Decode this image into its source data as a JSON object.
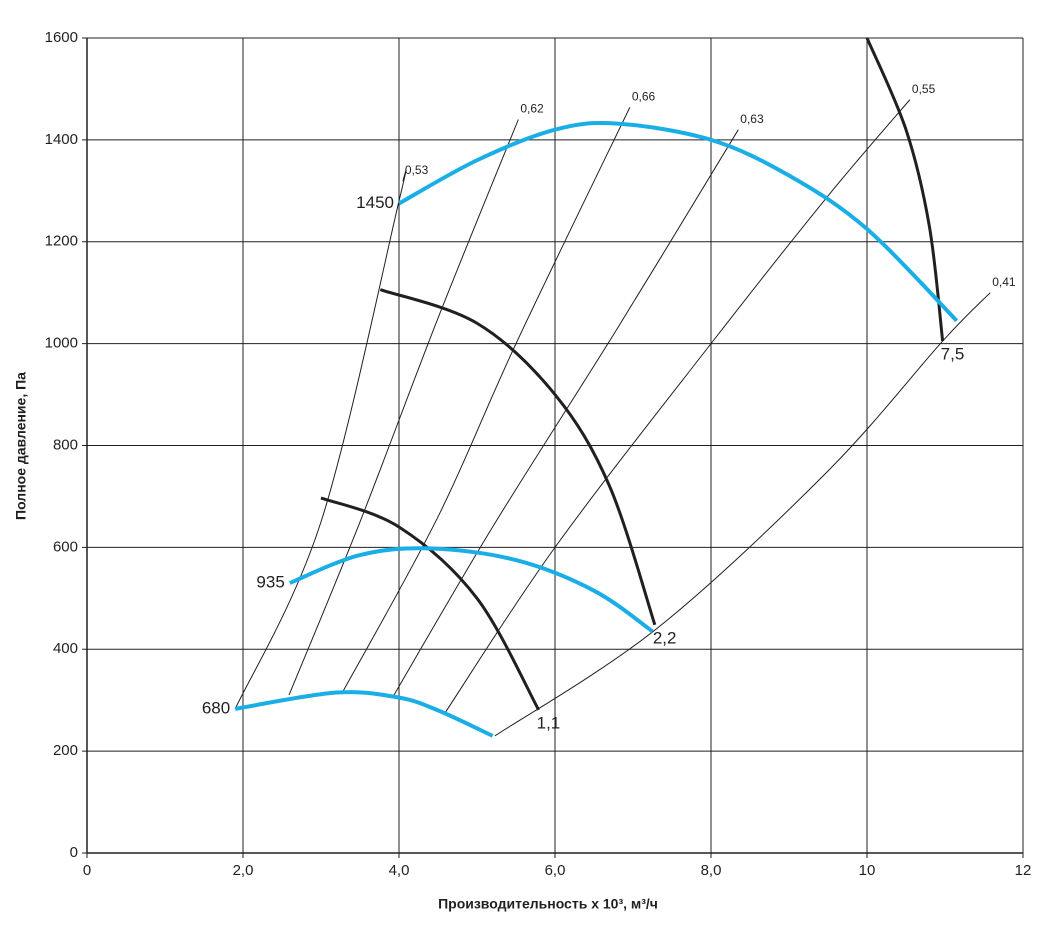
{
  "chart_data": {
    "type": "line",
    "x_label": "Производительность x 10³, м³/ч",
    "y_label": "Полное давление, Па",
    "xlim": [
      0,
      12
    ],
    "ylim": [
      0,
      1600
    ],
    "xticks": [
      0,
      {
        "value": 2,
        "label": "2,0"
      },
      {
        "value": 4,
        "label": "4,0"
      },
      {
        "value": 6,
        "label": "6,0"
      },
      {
        "value": 8,
        "label": "8,0"
      },
      10,
      12
    ],
    "yticks": [
      0,
      200,
      400,
      600,
      800,
      1000,
      1200,
      1400,
      1600
    ],
    "grid": true,
    "speed_series": [
      {
        "name": "1450",
        "color": "#1aaee6",
        "x": [
          4.0,
          5.0,
          6.0,
          6.8,
          8.0,
          9.0,
          10.0,
          11.15
        ],
        "values": [
          1275,
          1360,
          1420,
          1432,
          1400,
          1330,
          1225,
          1045
        ]
      },
      {
        "name": "935",
        "color": "#1aaee6",
        "x": [
          2.6,
          3.5,
          4.4,
          5.5,
          6.5,
          7.25
        ],
        "values": [
          530,
          585,
          598,
          575,
          515,
          435
        ]
      },
      {
        "name": "680",
        "color": "#1aaee6",
        "x": [
          1.9,
          3.2,
          4.0,
          4.5,
          5.2
        ],
        "values": [
          283,
          315,
          305,
          280,
          230
        ]
      }
    ],
    "power_series": [
      {
        "name": "1,1",
        "color": "#231f20",
        "x": [
          3.0,
          4.0,
          5.0,
          5.79
        ],
        "values": [
          697,
          640,
          500,
          281
        ]
      },
      {
        "name": "2,2",
        "color": "#231f20",
        "x": [
          3.76,
          5.0,
          6.0,
          6.7,
          7.28
        ],
        "values": [
          1106,
          1040,
          900,
          720,
          448
        ]
      },
      {
        "name": "7,5",
        "color": "#231f20",
        "x": [
          10.0,
          10.5,
          10.8,
          10.97
        ],
        "values": [
          1600,
          1420,
          1230,
          1005
        ]
      }
    ],
    "efficiency_series": [
      {
        "name": "0,53",
        "color": "#231f20",
        "x": [
          1.9,
          3.0,
          4.0,
          4.05
        ],
        "values": [
          283,
          650,
          1280,
          1320
        ]
      },
      {
        "name": "0,62",
        "color": "#231f20",
        "x": [
          2.59,
          3.5,
          4.5,
          5.53
        ],
        "values": [
          310,
          650,
          1050,
          1440
        ]
      },
      {
        "name": "0,66",
        "color": "#231f20",
        "x": [
          3.27,
          4.5,
          5.5,
          6.96
        ],
        "values": [
          314,
          660,
          1000,
          1464
        ]
      },
      {
        "name": "0,63",
        "color": "#231f20",
        "x": [
          3.92,
          5.2,
          6.8,
          8.35
        ],
        "values": [
          306,
          640,
          1030,
          1420
        ]
      },
      {
        "name": "0,55",
        "color": "#231f20",
        "x": [
          4.59,
          6.0,
          8.0,
          9.5,
          10.55
        ],
        "values": [
          275,
          600,
          1000,
          1290,
          1479
        ]
      },
      {
        "name": "0,41",
        "color": "#231f20",
        "x": [
          5.23,
          7.3,
          9.5,
          10.97,
          11.58
        ],
        "values": [
          230,
          440,
          750,
          1005,
          1100
        ]
      }
    ]
  }
}
